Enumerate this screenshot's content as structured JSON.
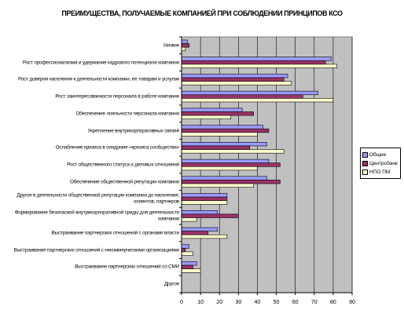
{
  "chart_data": {
    "type": "bar",
    "orientation": "horizontal",
    "title": "ПРЕИМУЩЕСТВА, ПОЛУЧАЕМЫЕ КОМПАНИЕЙ ПРИ СОБЛЮДЕНИИ ПРИНЦИПОВ КСО",
    "categories": [
      "Низкие",
      "Рост профессионализма и удержание кадрового потенциала компании",
      "Рост доверия населения к деятельности компании, ее товарам и услугам",
      "Рост заинтересованности персонала в работе компании",
      "Обеспечение лояльности персонала компании",
      "Укрепление внутрикорпоративных связей",
      "Ослабление кризиса в синдроме «кризиса сообщества»",
      "Рост общественного статуса и деловых отношений",
      "Обеспечение общественной репутации компании",
      "Другое в деятельности общественной репутации компании до населения, клиентов, партнеров",
      "Формирование безопасной внутрикорпоративной среды для деятельности компании",
      "Выстраивание партнерских отношений с органами власти",
      "Выстраивание партнерских отношений с некоммерческими организациями",
      "Выстраивание партнерских отношений со СМИ",
      "Другое"
    ],
    "series": [
      {
        "name": "Общее",
        "color": "#9999FF",
        "values": [
          3,
          79,
          56,
          72,
          32,
          43,
          45,
          46,
          45,
          24,
          19,
          19,
          4,
          8,
          0
        ]
      },
      {
        "name": "Центробанк",
        "color": "#993366",
        "values": [
          4,
          76,
          54,
          64,
          38,
          46,
          36,
          52,
          52,
          24,
          30,
          14,
          2,
          6,
          0
        ]
      },
      {
        "name": "НПО ПМ",
        "color": "#FFFFCC",
        "values": [
          2,
          82,
          58,
          80,
          26,
          40,
          54,
          40,
          38,
          24,
          8,
          24,
          6,
          10,
          0
        ]
      }
    ],
    "xlim": [
      0,
      90
    ],
    "x_ticks": [
      "0",
      "10",
      "20",
      "30",
      "40",
      "50",
      "60",
      "70",
      "80",
      "90"
    ],
    "grid": true,
    "plot_background": "#C0C0C0",
    "legend_position": "right"
  }
}
